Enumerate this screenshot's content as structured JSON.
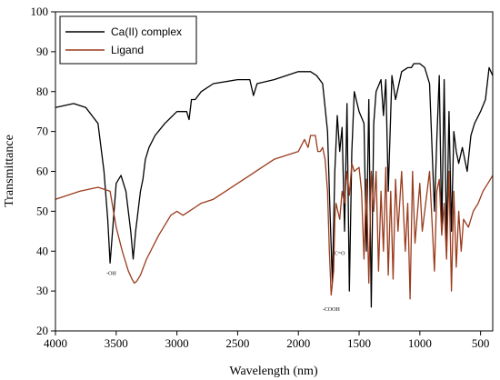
{
  "chart_data": {
    "type": "line",
    "xlabel": "Wavelength (nm)",
    "ylabel": "Transmittance",
    "xlim": [
      4000,
      400
    ],
    "ylim": [
      20,
      100
    ],
    "xticks": [
      4000,
      3500,
      3000,
      2500,
      2000,
      1500,
      1000,
      500
    ],
    "yticks": [
      20,
      30,
      40,
      50,
      60,
      70,
      80,
      90,
      100
    ],
    "legend_position": "top-left",
    "grid": false,
    "series": [
      {
        "name": "Ca(II) complex",
        "color": "#000000",
        "x": [
          4000,
          3850,
          3750,
          3650,
          3600,
          3570,
          3550,
          3530,
          3500,
          3460,
          3420,
          3380,
          3360,
          3340,
          3300,
          3280,
          3260,
          3230,
          3180,
          3100,
          3000,
          2920,
          2900,
          2880,
          2850,
          2800,
          2700,
          2500,
          2400,
          2370,
          2340,
          2200,
          2000,
          1900,
          1850,
          1800,
          1760,
          1740,
          1720,
          1700,
          1680,
          1660,
          1640,
          1620,
          1600,
          1580,
          1560,
          1540,
          1500,
          1460,
          1440,
          1420,
          1400,
          1380,
          1360,
          1320,
          1300,
          1280,
          1260,
          1230,
          1200,
          1150,
          1100,
          1070,
          1050,
          1000,
          960,
          920,
          880,
          860,
          840,
          820,
          800,
          780,
          760,
          740,
          720,
          700,
          680,
          650,
          610,
          580,
          550,
          500,
          460,
          430,
          400
        ],
        "y": [
          76,
          77,
          76,
          72,
          60,
          48,
          37,
          45,
          57,
          59,
          55,
          45,
          38,
          45,
          55,
          58,
          63,
          66,
          69,
          72,
          75,
          75,
          73,
          78,
          78,
          80,
          82,
          83,
          83,
          79,
          82,
          83,
          85,
          85,
          84,
          82,
          70,
          50,
          32,
          60,
          74,
          65,
          71,
          45,
          77,
          30,
          65,
          80,
          75,
          72,
          40,
          78,
          26,
          72,
          80,
          83,
          74,
          83,
          55,
          84,
          78,
          85,
          86,
          86,
          87,
          87,
          86,
          82,
          50,
          68,
          84,
          45,
          83,
          42,
          75,
          45,
          70,
          65,
          62,
          66,
          60,
          69,
          72,
          75,
          78,
          86,
          84
        ]
      },
      {
        "name": "Ligand",
        "color": "#9a3b1d",
        "x": [
          4000,
          3800,
          3650,
          3550,
          3500,
          3450,
          3400,
          3370,
          3350,
          3330,
          3300,
          3250,
          3150,
          3050,
          3000,
          2950,
          2900,
          2850,
          2800,
          2700,
          2600,
          2500,
          2400,
          2300,
          2200,
          2100,
          2000,
          1950,
          1920,
          1900,
          1880,
          1860,
          1840,
          1820,
          1800,
          1780,
          1760,
          1745,
          1730,
          1710,
          1700,
          1690,
          1660,
          1640,
          1620,
          1600,
          1580,
          1560,
          1540,
          1500,
          1480,
          1460,
          1440,
          1420,
          1400,
          1380,
          1360,
          1340,
          1320,
          1300,
          1280,
          1260,
          1240,
          1220,
          1200,
          1180,
          1150,
          1120,
          1100,
          1080,
          1060,
          1040,
          1000,
          980,
          960,
          920,
          880,
          860,
          840,
          820,
          800,
          780,
          760,
          740,
          720,
          700,
          680,
          660,
          640,
          600,
          560,
          520,
          480,
          440,
          400
        ],
        "y": [
          53,
          55,
          56,
          55,
          46,
          40,
          35,
          33,
          32,
          32.5,
          34,
          38,
          44,
          49,
          50,
          49,
          50,
          51,
          52,
          53,
          55,
          57,
          59,
          61,
          63,
          64,
          65,
          68,
          66,
          69,
          69,
          69,
          65,
          65,
          66,
          63,
          55,
          40,
          29,
          35,
          48,
          52,
          48,
          55,
          52,
          60,
          54,
          62,
          60,
          61,
          55,
          38,
          58,
          32,
          60,
          50,
          60,
          35,
          55,
          40,
          61,
          34,
          55,
          33,
          58,
          45,
          60,
          40,
          52,
          28,
          60,
          42,
          57,
          45,
          50,
          60,
          35,
          55,
          58,
          44,
          52,
          38,
          60,
          30,
          55,
          36,
          50,
          40,
          48,
          46,
          50,
          52,
          55,
          57,
          59
        ]
      }
    ],
    "annotations": [
      {
        "text": "-OH",
        "x": 3540,
        "y": 34
      },
      {
        "text": "C=O",
        "x": 1660,
        "y": 39
      },
      {
        "text": "-COOH",
        "x": 1730,
        "y": 25
      }
    ]
  }
}
